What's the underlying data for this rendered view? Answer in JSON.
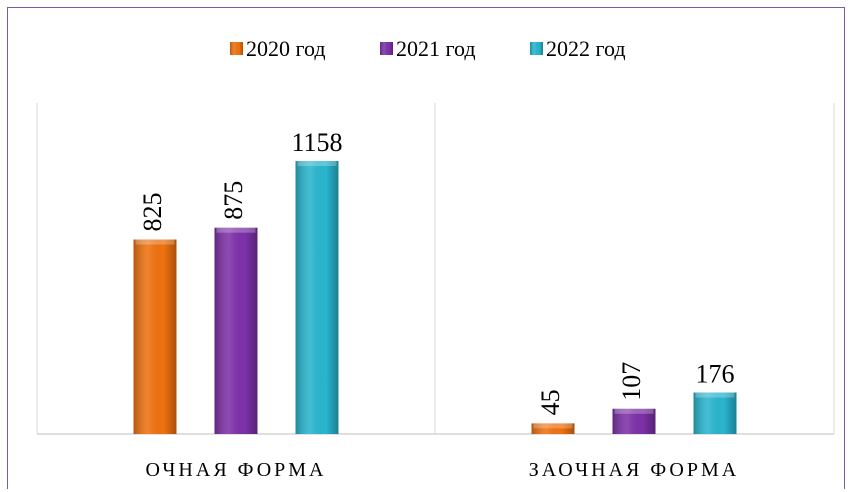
{
  "chart_data": {
    "type": "bar",
    "categories": [
      "ОЧНАЯ ФОРМА",
      "ЗАОЧНАЯ ФОРМА"
    ],
    "series": [
      {
        "name": "2020 год",
        "color": "#f0720f",
        "values": [
          825,
          45
        ]
      },
      {
        "name": "2021 год",
        "color": "#7e31a9",
        "values": [
          875,
          107
        ]
      },
      {
        "name": "2022 год",
        "color": "#29b6cf",
        "values": [
          1158,
          176
        ]
      }
    ],
    "ylim": [
      0,
      1300
    ],
    "legend": "top",
    "grid": false,
    "data_labels": true
  }
}
